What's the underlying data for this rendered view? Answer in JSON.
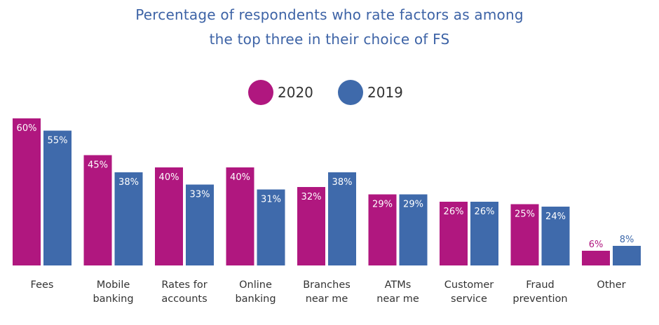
{
  "chart_data": {
    "type": "bar",
    "title_lines": [
      "Percentage of respondents who rate factors as among",
      "the top three in their choice of FS"
    ],
    "categories": [
      [
        "Fees"
      ],
      [
        "Mobile",
        "banking"
      ],
      [
        "Rates for",
        "accounts"
      ],
      [
        "Online",
        "banking"
      ],
      [
        "Branches",
        "near me"
      ],
      [
        "ATMs",
        "near me"
      ],
      [
        "Customer",
        "service"
      ],
      [
        "Fraud",
        "prevention"
      ],
      [
        "Other"
      ]
    ],
    "series": [
      {
        "name": "2020",
        "color": "#b0177f",
        "values": [
          60,
          45,
          40,
          40,
          32,
          29,
          26,
          25,
          6
        ],
        "labels": [
          "60%",
          "45%",
          "40%",
          "40%",
          "32%",
          "29%",
          "26%",
          "25%",
          "6%"
        ]
      },
      {
        "name": "2019",
        "color": "#3f6aab",
        "values": [
          55,
          38,
          33,
          31,
          38,
          29,
          26,
          24,
          8
        ],
        "labels": [
          "55%",
          "38%",
          "33%",
          "31%",
          "38%",
          "29%",
          "26%",
          "24%",
          "8%"
        ]
      }
    ],
    "ylim": [
      0,
      60
    ],
    "legend_position": "top-center",
    "grid": false,
    "xlabel": "",
    "ylabel": ""
  }
}
